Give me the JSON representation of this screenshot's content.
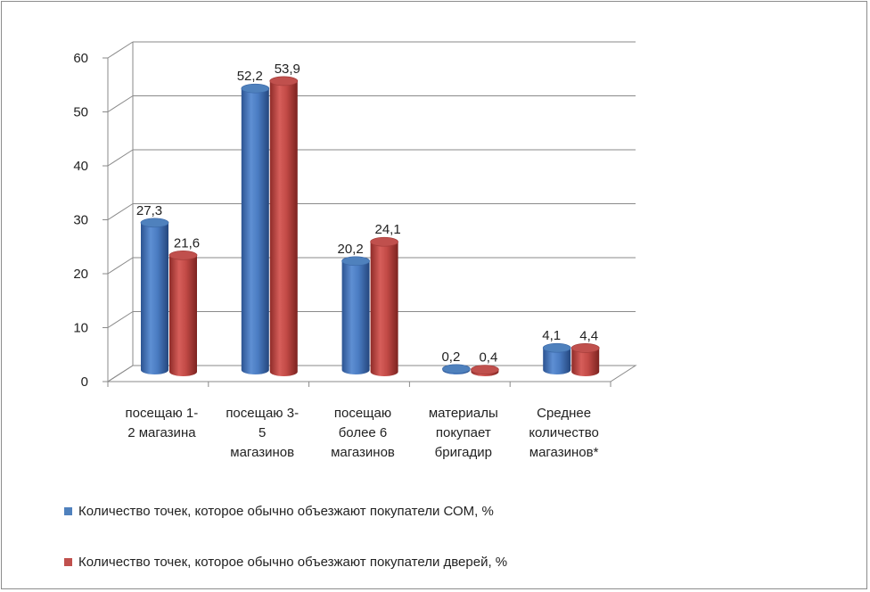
{
  "chart_data": {
    "type": "bar",
    "title": "",
    "xlabel": "",
    "ylabel": "",
    "ylim": [
      0,
      60
    ],
    "yticks": [
      0,
      10,
      20,
      30,
      40,
      50,
      60
    ],
    "grid": true,
    "legend_position": "bottom",
    "categories": [
      [
        "посещаю 1-",
        "2 магазина"
      ],
      [
        "посещаю 3-",
        "5",
        "магазинов"
      ],
      [
        "посещаю",
        "более 6",
        "магазинов"
      ],
      [
        "материалы",
        "покупает",
        "бригадир"
      ],
      [
        "Среднее",
        "количество",
        "магазинов*"
      ]
    ],
    "series": [
      {
        "name": "Количество точек, которое обычно объезжают покупатели СОМ, %",
        "color": "#4f81bd",
        "values": [
          27.3,
          52.2,
          20.2,
          0.2,
          4.1
        ],
        "labels": [
          "27,3",
          "52,2",
          "20,2",
          "0,2",
          "4,1"
        ]
      },
      {
        "name": "Количество точек, которое обычно объезжают покупатели дверей, %",
        "color": "#c0504d",
        "values": [
          21.6,
          53.9,
          24.1,
          0.4,
          4.4
        ],
        "labels": [
          "21,6",
          "53,9",
          "24,1",
          "0,4",
          "4,4"
        ]
      }
    ]
  }
}
